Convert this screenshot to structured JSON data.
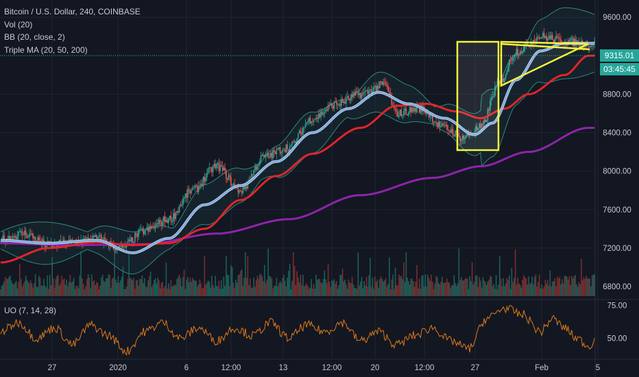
{
  "legend": {
    "title": "Bitcoin / U.S. Dollar, 240, COINBASE",
    "vol": "Vol (20)",
    "bb": "BB (20, close, 2)",
    "ma": "Triple MA (20, 50, 200)",
    "osc": "UO (7, 14, 28)"
  },
  "last_price": "9315.01",
  "countdown": "03:45:45",
  "colors": {
    "background": "#131722",
    "up": "#26a69a",
    "down": "#ef5350",
    "bb_band": "#2e8b80",
    "ma20": "#7aa5d8",
    "ma50": "#e3242b",
    "ma200": "#8e24aa",
    "oscillator": "#e07b1a",
    "annotation": "#f5f53c"
  },
  "chart_data": {
    "type": "candlestick",
    "x_ticks": [
      "27",
      "2020",
      "6",
      "12:00",
      "13",
      "12:00",
      "20",
      "12:00",
      "27",
      "Feb",
      "5"
    ],
    "price_axis": {
      "ticks": [
        "9600.00",
        "9200.00",
        "8800.00",
        "8400.00",
        "8000.00",
        "7600.00",
        "7200.00",
        "6800.00"
      ],
      "ylim": [
        6700,
        9680
      ]
    },
    "series_close_anchors": [
      [
        0,
        7290
      ],
      [
        20,
        7350
      ],
      [
        40,
        7230
      ],
      [
        60,
        7260
      ],
      [
        80,
        7300
      ],
      [
        100,
        7200
      ],
      [
        120,
        7380
      ],
      [
        140,
        7500
      ],
      [
        160,
        7800
      ],
      [
        180,
        8050
      ],
      [
        200,
        7800
      ],
      [
        220,
        8150
      ],
      [
        240,
        8250
      ],
      [
        260,
        8550
      ],
      [
        280,
        8700
      ],
      [
        300,
        8800
      ],
      [
        320,
        8900
      ],
      [
        330,
        8600
      ],
      [
        350,
        8650
      ],
      [
        370,
        8450
      ],
      [
        385,
        8350
      ],
      [
        400,
        8450
      ],
      [
        415,
        8900
      ],
      [
        430,
        9250
      ],
      [
        450,
        9400
      ],
      [
        470,
        9350
      ],
      [
        490,
        9320
      ]
    ],
    "ma20_anchors": [
      [
        0,
        7280
      ],
      [
        40,
        7250
      ],
      [
        80,
        7280
      ],
      [
        110,
        7150
      ],
      [
        140,
        7300
      ],
      [
        170,
        7650
      ],
      [
        200,
        7850
      ],
      [
        230,
        8100
      ],
      [
        260,
        8400
      ],
      [
        290,
        8650
      ],
      [
        315,
        8820
      ],
      [
        340,
        8700
      ],
      [
        370,
        8550
      ],
      [
        395,
        8380
      ],
      [
        410,
        8500
      ],
      [
        430,
        8950
      ],
      [
        450,
        9250
      ],
      [
        470,
        9330
      ],
      [
        490,
        9330
      ]
    ],
    "ma50_anchors": [
      [
        0,
        7050
      ],
      [
        40,
        7200
      ],
      [
        80,
        7260
      ],
      [
        110,
        7230
      ],
      [
        140,
        7250
      ],
      [
        170,
        7400
      ],
      [
        200,
        7700
      ],
      [
        230,
        7950
      ],
      [
        260,
        8180
      ],
      [
        300,
        8450
      ],
      [
        330,
        8680
      ],
      [
        355,
        8700
      ],
      [
        380,
        8620
      ],
      [
        400,
        8550
      ],
      [
        420,
        8650
      ],
      [
        440,
        8800
      ],
      [
        470,
        9000
      ],
      [
        490,
        9200
      ]
    ],
    "ma200_anchors": [
      [
        0,
        7250
      ],
      [
        60,
        7230
      ],
      [
        120,
        7240
      ],
      [
        180,
        7350
      ],
      [
        240,
        7500
      ],
      [
        300,
        7750
      ],
      [
        360,
        7930
      ],
      [
        400,
        8050
      ],
      [
        440,
        8200
      ],
      [
        490,
        8450
      ]
    ],
    "osc_axis": {
      "ticks": [
        "75.00",
        "50.00"
      ],
      "ylim": [
        35,
        78
      ]
    },
    "osc_anchors": [
      [
        0,
        55
      ],
      [
        15,
        62
      ],
      [
        30,
        50
      ],
      [
        45,
        58
      ],
      [
        60,
        45
      ],
      [
        75,
        60
      ],
      [
        90,
        52
      ],
      [
        105,
        40
      ],
      [
        120,
        55
      ],
      [
        135,
        62
      ],
      [
        150,
        50
      ],
      [
        165,
        58
      ],
      [
        180,
        48
      ],
      [
        195,
        58
      ],
      [
        210,
        52
      ],
      [
        225,
        62
      ],
      [
        240,
        50
      ],
      [
        255,
        60
      ],
      [
        270,
        55
      ],
      [
        285,
        62
      ],
      [
        300,
        48
      ],
      [
        315,
        55
      ],
      [
        330,
        45
      ],
      [
        345,
        52
      ],
      [
        360,
        58
      ],
      [
        375,
        48
      ],
      [
        390,
        42
      ],
      [
        405,
        65
      ],
      [
        420,
        73
      ],
      [
        435,
        68
      ],
      [
        450,
        55
      ],
      [
        460,
        65
      ],
      [
        470,
        58
      ],
      [
        480,
        50
      ],
      [
        490,
        44
      ],
      [
        495,
        48
      ]
    ],
    "annotations": [
      {
        "type": "rectangle",
        "label": "yellow box"
      },
      {
        "type": "triangle",
        "label": "ascending triangle"
      }
    ]
  }
}
